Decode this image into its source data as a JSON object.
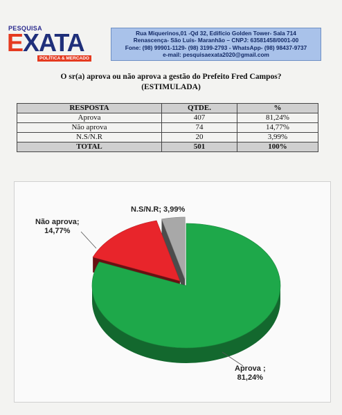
{
  "header": {
    "logo_top": "PESQUISA",
    "logo_name": "EXATA",
    "logo_tagline": "POLÍTICA & MERCADO",
    "address_lines": [
      "Rua Miquerinos,01 -Qd 32,  Edifício Golden Tower- Sala 714",
      "Renascença- São Luís- Maranhão – CNPJ: 63581458/0001-00",
      "Fone: (98) 99901-1129- (98) 3199-2793 - WhatsApp- (98) 98437-9737",
      "e-mail: pesquisaexata2020@gmail.com"
    ]
  },
  "question": {
    "line1": "O sr(a) aprova ou não aprova a gestão do Prefeito Fred Campos?",
    "line2": "(ESTIMULADA)"
  },
  "table": {
    "headers": [
      "RESPOSTA",
      "QTDE.",
      "%"
    ],
    "rows": [
      [
        "Aprova",
        "407",
        "81,24%"
      ],
      [
        "Não aprova",
        "74",
        "14,77%"
      ],
      [
        "N.S/N.R",
        "20",
        "3,99%"
      ]
    ],
    "total": [
      "TOTAL",
      "501",
      "100%"
    ]
  },
  "chart_data": {
    "type": "pie",
    "categories": [
      "Aprova",
      "Não aprova",
      "N.S/N.R"
    ],
    "values": [
      81.24,
      14.77,
      3.99
    ],
    "colors": [
      "#1ea84a",
      "#e8252b",
      "#a8a8a8"
    ],
    "data_labels": [
      [
        "Aprova ;",
        "81,24%"
      ],
      [
        "Não aprova;",
        "14,77%"
      ],
      [
        "N.S/N.R; 3,99%"
      ]
    ],
    "exploded": true,
    "three_d": true
  }
}
